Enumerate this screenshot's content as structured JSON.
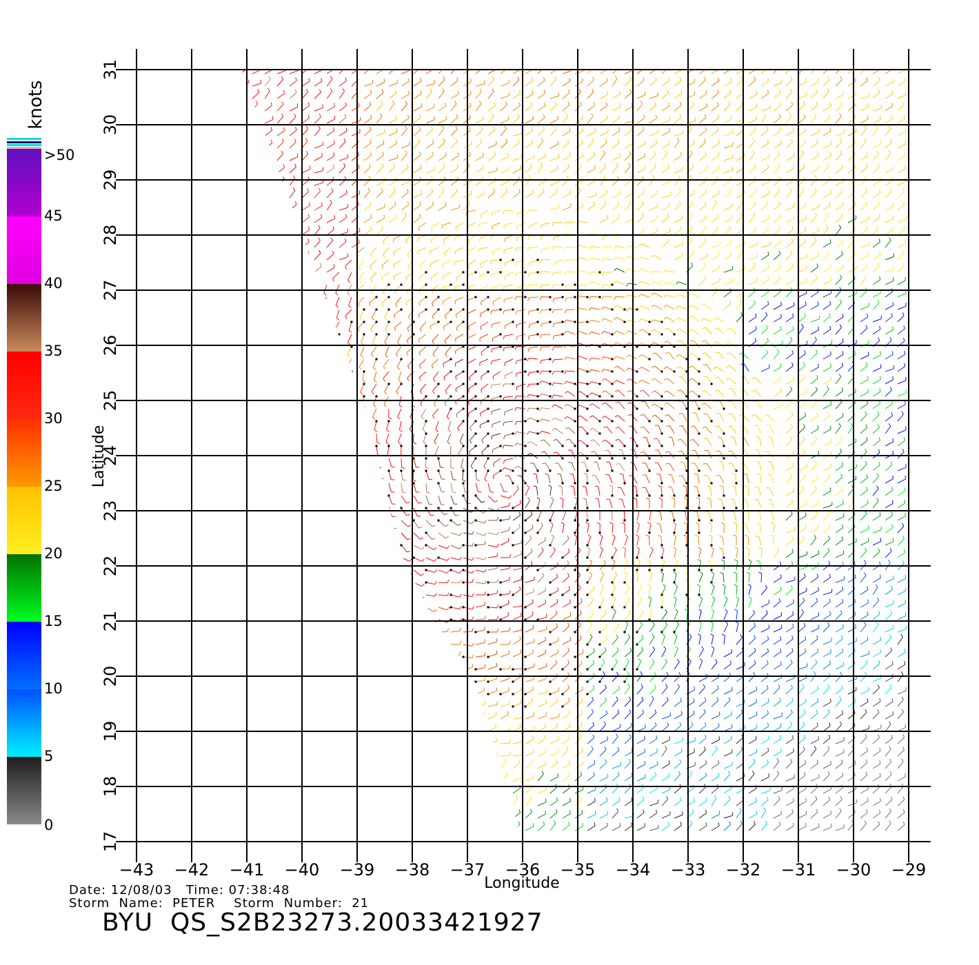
{
  "colorbar": {
    "title": "knots",
    "ticks": [
      "0",
      "5",
      "10",
      "15",
      "20",
      "25",
      "30",
      "35",
      "40",
      "45",
      ">50"
    ],
    "segments": [
      {
        "from": 0,
        "to": 5,
        "top_color": "#1e1e1e",
        "bottom_color": "#8a8a8a"
      },
      {
        "from": 5,
        "to": 10,
        "top_color": "#0050ff",
        "bottom_color": "#00f0ff"
      },
      {
        "from": 10,
        "to": 15,
        "top_color": "#0000ff",
        "bottom_color": "#0070ff"
      },
      {
        "from": 15,
        "to": 20,
        "top_color": "#007000",
        "bottom_color": "#00ff20"
      },
      {
        "from": 20,
        "to": 25,
        "top_color": "#ffc000",
        "bottom_color": "#fff020"
      },
      {
        "from": 25,
        "to": 30,
        "top_color": "#ff3000",
        "bottom_color": "#ff9a00"
      },
      {
        "from": 30,
        "to": 35,
        "top_color": "#ff0000",
        "bottom_color": "#ff2a10"
      },
      {
        "from": 35,
        "to": 40,
        "top_color": "#3a0a08",
        "bottom_color": "#c88a5a"
      },
      {
        "from": 40,
        "to": 45,
        "top_color": "#ff00ff",
        "bottom_color": "#e000e0"
      },
      {
        "from": 45,
        "to": 50,
        "top_color": "#6010c0",
        "bottom_color": "#b000d0"
      }
    ]
  },
  "axes": {
    "x_title": "Longitude",
    "y_title": "Latitude",
    "x_ticks": [
      "−43",
      "−42",
      "−41",
      "−40",
      "−39",
      "−38",
      "−37",
      "−36",
      "−35",
      "−34",
      "−33",
      "−32",
      "−31",
      "−30",
      "−29"
    ],
    "y_ticks": [
      "17",
      "18",
      "19",
      "20",
      "21",
      "22",
      "23",
      "24",
      "25",
      "26",
      "27",
      "28",
      "29",
      "30",
      "31"
    ],
    "x_range": [
      -43,
      -29
    ],
    "y_range": [
      17,
      31
    ]
  },
  "info": {
    "line1": "Date: 12/08/03   Time: 07:38:48",
    "line2": "Storm  Name:  PETER    Storm  Number:  21"
  },
  "product_id": "BYU  QS_S2B23273.20033421927",
  "swath": {
    "west_edge": [
      [
        -41.1,
        31
      ],
      [
        -38.9,
        25
      ],
      [
        -38.2,
        22.2
      ],
      [
        -37.6,
        21.0
      ],
      [
        -36.9,
        20.0
      ],
      [
        -36.0,
        17.0
      ]
    ],
    "east_lon": -29
  },
  "storm_center": {
    "lon": -36.3,
    "lat": 23.5
  }
}
